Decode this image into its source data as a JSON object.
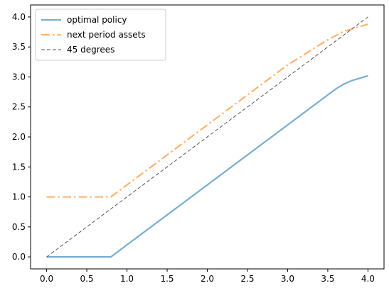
{
  "chart_data": {
    "type": "line",
    "title": "",
    "xlabel": "",
    "ylabel": "",
    "xlim": [
      -0.2,
      4.2
    ],
    "ylim": [
      -0.2,
      4.2
    ],
    "x_ticks": [
      0.0,
      0.5,
      1.0,
      1.5,
      2.0,
      2.5,
      3.0,
      3.5,
      4.0
    ],
    "x_tick_labels": [
      "0.0",
      "0.5",
      "1.0",
      "1.5",
      "2.0",
      "2.5",
      "3.0",
      "3.5",
      "4.0"
    ],
    "y_ticks": [
      0.0,
      0.5,
      1.0,
      1.5,
      2.0,
      2.5,
      3.0,
      3.5,
      4.0
    ],
    "y_tick_labels": [
      "0.0",
      "0.5",
      "1.0",
      "1.5",
      "2.0",
      "2.5",
      "3.0",
      "3.5",
      "4.0"
    ],
    "grid": false,
    "legend_position": "top-left",
    "series": [
      {
        "name": "optimal policy",
        "color": "#1f77b4",
        "style": "solid",
        "x": [
          0.0,
          0.8,
          1.0,
          1.5,
          2.0,
          2.5,
          3.0,
          3.4,
          3.6,
          3.7,
          3.8,
          3.9,
          4.0
        ],
        "y": [
          0.0,
          0.0,
          0.2,
          0.7,
          1.2,
          1.7,
          2.2,
          2.6,
          2.8,
          2.88,
          2.94,
          2.98,
          3.02
        ]
      },
      {
        "name": "next period assets",
        "color": "#ff7f0e",
        "style": "dashdot",
        "x": [
          0.0,
          0.8,
          1.0,
          1.5,
          2.0,
          2.5,
          3.0,
          3.5,
          3.7,
          3.9,
          4.0
        ],
        "y": [
          1.0,
          1.0,
          1.2,
          1.7,
          2.2,
          2.7,
          3.2,
          3.62,
          3.76,
          3.84,
          3.88
        ]
      },
      {
        "name": "45 degrees",
        "color": "#555555",
        "style": "dashed",
        "x": [
          0.0,
          4.0
        ],
        "y": [
          0.0,
          4.0
        ]
      }
    ]
  }
}
